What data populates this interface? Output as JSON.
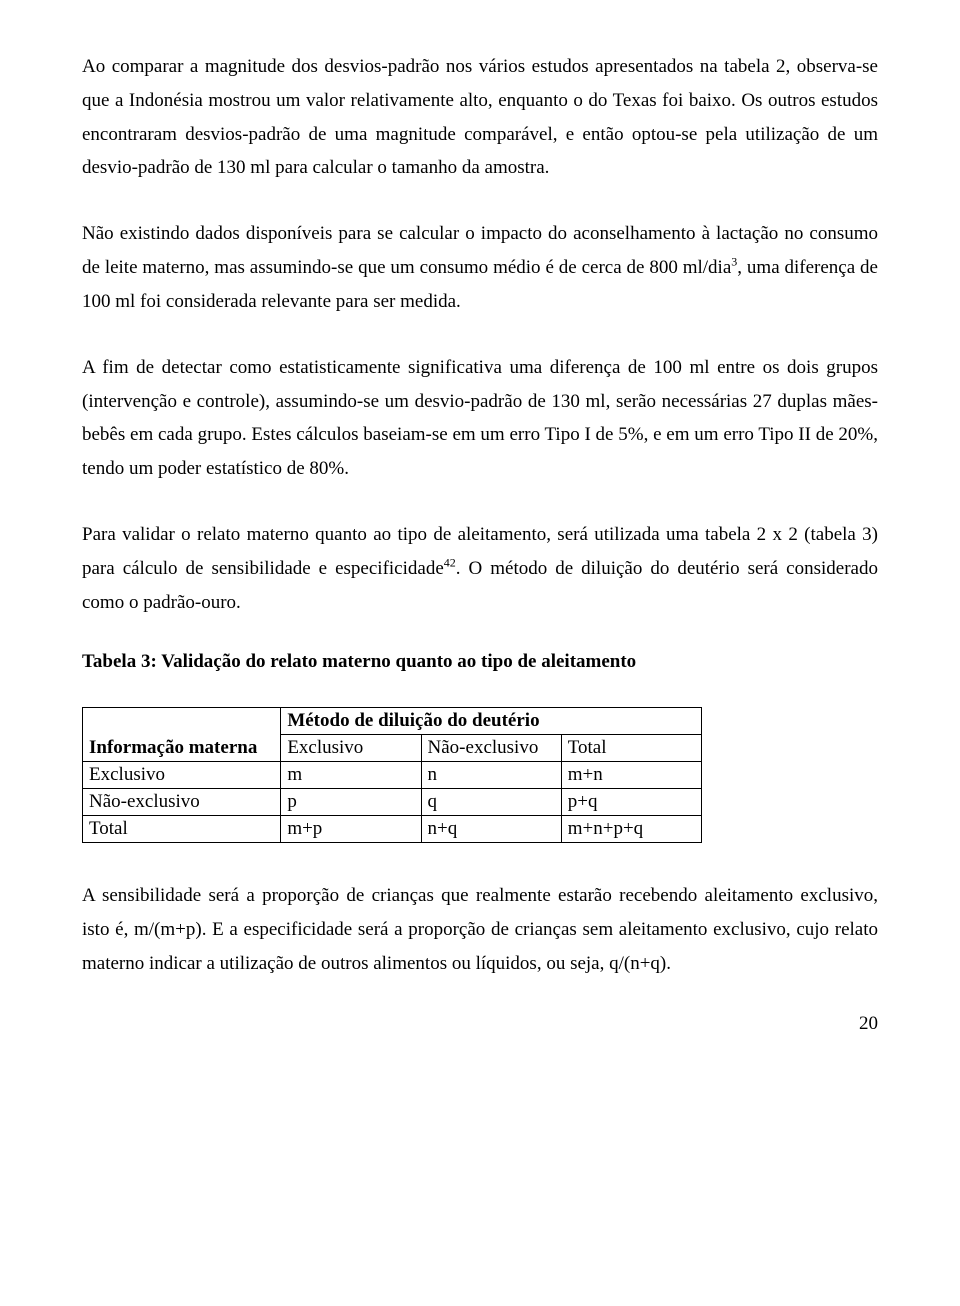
{
  "paragraphs": {
    "p1a": "Ao comparar a magnitude dos desvios-padrão nos vários estudos apresentados na tabela 2, observa-se que a Indonésia mostrou um valor relativamente alto, enquanto o do Texas foi baixo. Os outros estudos encontraram desvios-padrão de uma magnitude comparável, e então optou-se pela utilização de um desvio-padrão de 130 ml para calcular o tamanho da amostra.",
    "p2a": "Não existindo dados disponíveis para se calcular o impacto do aconselhamento à lactação no consumo de leite materno, mas assumindo-se que um consumo médio é de cerca de 800 ml/dia",
    "p2sup": "3",
    "p2b": ", uma diferença de 100 ml foi considerada relevante para ser medida.",
    "p3": "A fim de detectar como estatisticamente significativa uma diferença de 100 ml entre os dois grupos (intervenção e controle), assumindo-se um desvio-padrão de 130 ml, serão necessárias 27 duplas mães-bebês em cada grupo. Estes cálculos baseiam-se em um erro Tipo I de 5%, e em um erro Tipo II de 20%, tendo um poder estatístico de 80%.",
    "p4a": "Para validar o relato materno quanto ao tipo de aleitamento, será utilizada uma tabela 2 x 2 (tabela 3) para cálculo de sensibilidade e especificidade",
    "p4sup": "42",
    "p4b": ". O método de diluição do deutério será considerado como o padrão-ouro.",
    "p5": "A sensibilidade será a proporção de crianças que realmente estarão recebendo aleitamento exclusivo, isto é, m/(m+p). E a especificidade será a proporção de crianças sem aleitamento exclusivo, cujo relato materno indicar a utilização de outros alimentos ou líquidos, ou seja, q/(n+q)."
  },
  "table": {
    "title": "Tabela 3: Validação do relato materno quanto ao tipo de aleitamento",
    "rowheader_col": "Informação materna",
    "method_header": "Método de diluição do deutério",
    "subcols": [
      "Exclusivo",
      "Não-exclusivo",
      "Total"
    ],
    "rows": [
      {
        "label": "Exclusivo",
        "c1": "m",
        "c2": "n",
        "c3": "m+n"
      },
      {
        "label": "Não-exclusivo",
        "c1": "p",
        "c2": "q",
        "c3": "p+q"
      },
      {
        "label": "Total",
        "c1": "m+p",
        "c2": "n+q",
        "c3": "m+n+p+q"
      }
    ]
  },
  "page_number": "20"
}
